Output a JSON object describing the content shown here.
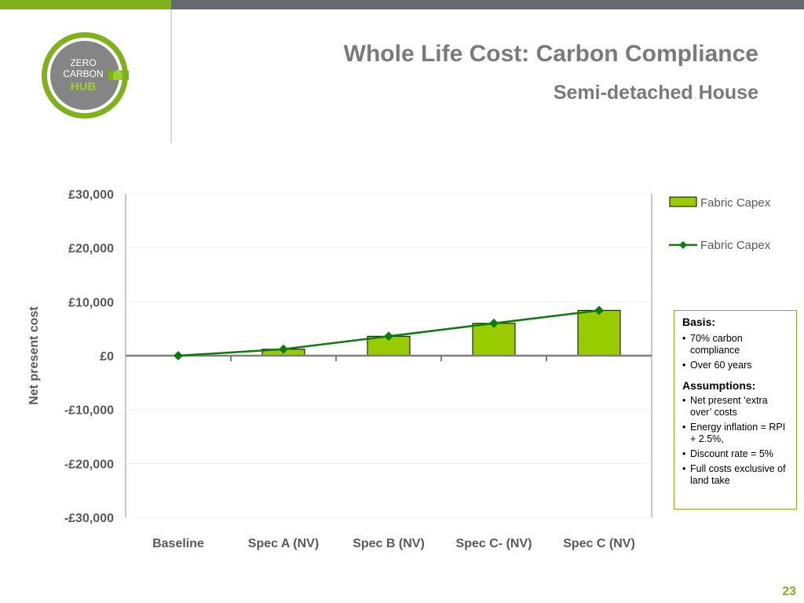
{
  "header": {
    "title": "Whole Life Cost: Carbon Compliance",
    "subtitle": "Semi-detached House"
  },
  "logo": {
    "line1": "ZERO",
    "line2": "CARBON",
    "line3": "HUB",
    "colors": {
      "ring": "#7fb21a",
      "disc": "#858585",
      "text": "#ffffff",
      "hub": "#9ed12f"
    }
  },
  "colors": {
    "accent_green": "#7fb21a",
    "bar_fill": "#99cc00",
    "line": "#0f7a0f",
    "marker": "#0f7a0f",
    "header_grey": "#666a6e",
    "title_grey": "#7a7a7a"
  },
  "chart_data": {
    "type": "bar",
    "categories": [
      "Baseline",
      "Spec A (NV)",
      "Spec B (NV)",
      "Spec C- (NV)",
      "Spec C (NV)"
    ],
    "series": [
      {
        "name": "Fabric Capex",
        "kind": "bar",
        "values": [
          0,
          1200,
          3600,
          6000,
          8400
        ]
      },
      {
        "name": "Fabric Capex",
        "kind": "line",
        "values": [
          0,
          1200,
          3600,
          6000,
          8400
        ]
      }
    ],
    "ylabel": "Net present cost",
    "xlabel": "",
    "ylim": [
      -30000,
      30000
    ],
    "yticks": [
      30000,
      20000,
      10000,
      0,
      -10000,
      -20000,
      -30000
    ],
    "ytick_labels": [
      "£30,000",
      "£20,000",
      "£10,000",
      "£0",
      "-£10,000",
      "-£20,000",
      "-£30,000"
    ],
    "grid": true,
    "legend": "right"
  },
  "basis": {
    "heading": "Basis:",
    "items": [
      "70%  carbon compliance",
      "Over 60 years"
    ],
    "assumptions_heading": "Assumptions:",
    "assumptions": [
      "Net present ‘extra over’ costs",
      "Energy inflation = RPI + 2.5%,",
      "Discount rate = 5%",
      "Full costs exclusive of land take"
    ]
  },
  "page_number": "23"
}
